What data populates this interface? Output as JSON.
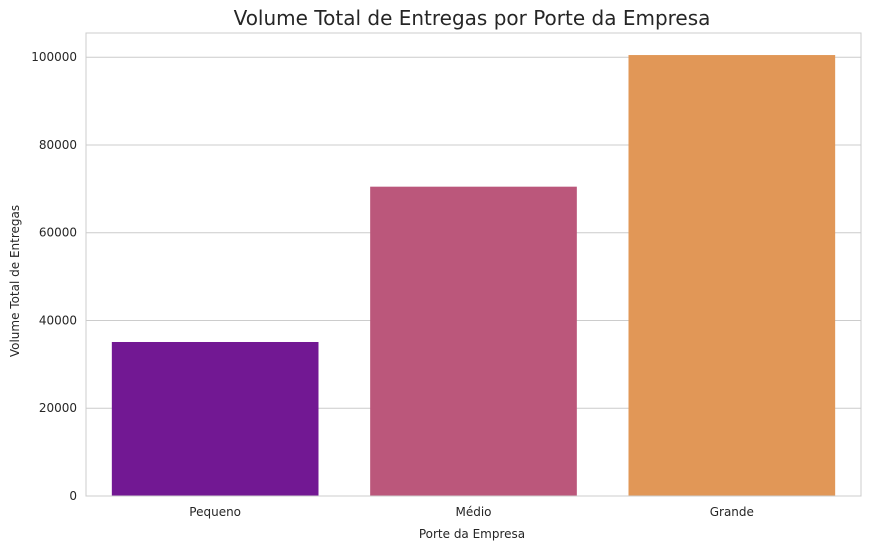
{
  "chart_data": {
    "type": "bar",
    "title": "Volume Total de Entregas por Porte da Empresa",
    "xlabel": "Porte da Empresa",
    "ylabel": "Volume Total de Entregas",
    "categories": [
      "Pequeno",
      "Médio",
      "Grande"
    ],
    "values": [
      35100,
      70500,
      100500
    ],
    "ylim": [
      0,
      105525
    ],
    "yticks": [
      0,
      20000,
      40000,
      60000,
      80000,
      100000
    ],
    "ytick_labels": [
      "0",
      "20000",
      "40000",
      "60000",
      "80000",
      "100000"
    ],
    "bar_colors": [
      "#721893",
      "#bb577b",
      "#e19757"
    ],
    "grid": true,
    "grid_color": "#cccccc",
    "background": "#ffffff",
    "style": "whitegrid"
  }
}
